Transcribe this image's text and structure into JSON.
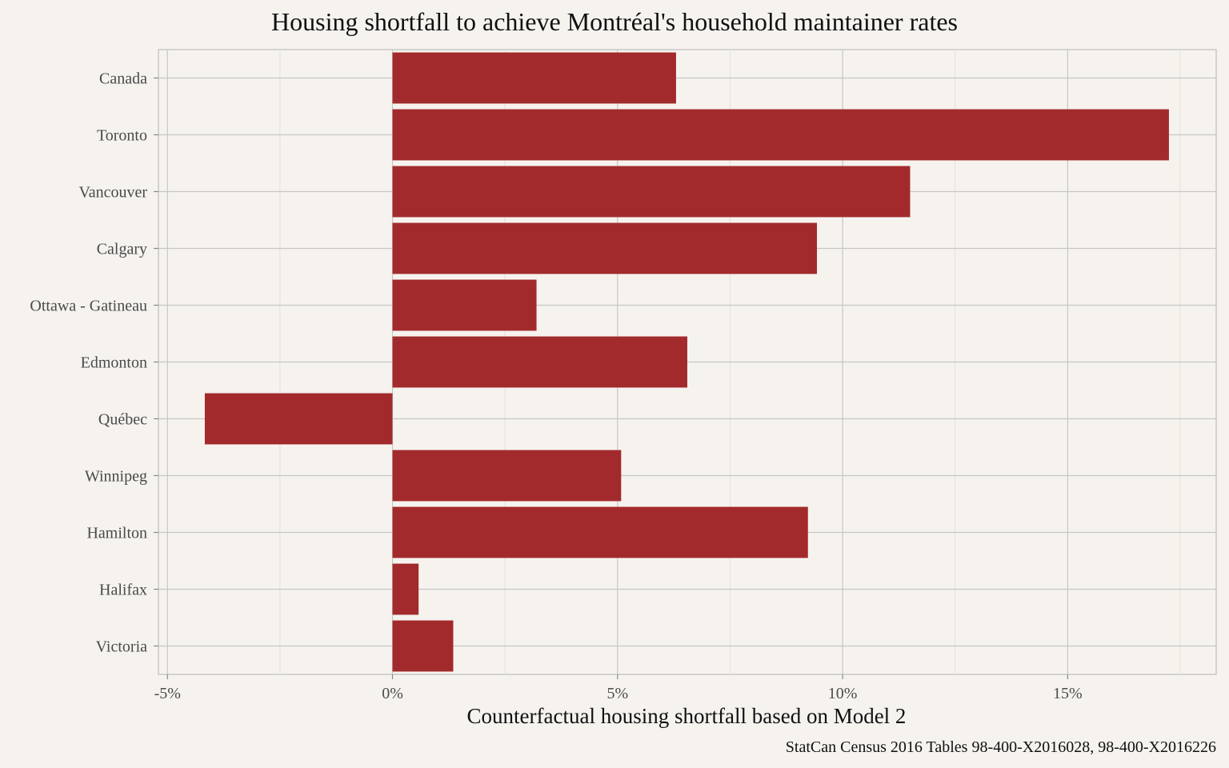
{
  "chart_data": {
    "type": "bar",
    "orientation": "horizontal",
    "title": "Housing shortfall to achieve Montréal's household maintainer rates",
    "xlabel": "Counterfactual housing shortfall based on Model 2",
    "ylabel": "",
    "caption": "StatCan Census 2016 Tables 98-400-X2016028, 98-400-X2016226",
    "categories": [
      "Canada",
      "Toronto",
      "Vancouver",
      "Calgary",
      "Ottawa - Gatineau",
      "Edmonton",
      "Québec",
      "Winnipeg",
      "Hamilton",
      "Halifax",
      "Victoria"
    ],
    "values": [
      0.063,
      0.1725,
      0.115,
      0.0943,
      0.032,
      0.0655,
      -0.0417,
      0.0508,
      0.0923,
      0.0058,
      0.0135
    ],
    "xlim": [
      -0.052,
      0.183
    ],
    "xticks": [
      -0.05,
      0,
      0.05,
      0.1,
      0.15
    ],
    "xtick_labels": [
      "-5%",
      "0%",
      "5%",
      "10%",
      "15%"
    ],
    "grid": true,
    "bar_color": "#a32a2c"
  }
}
